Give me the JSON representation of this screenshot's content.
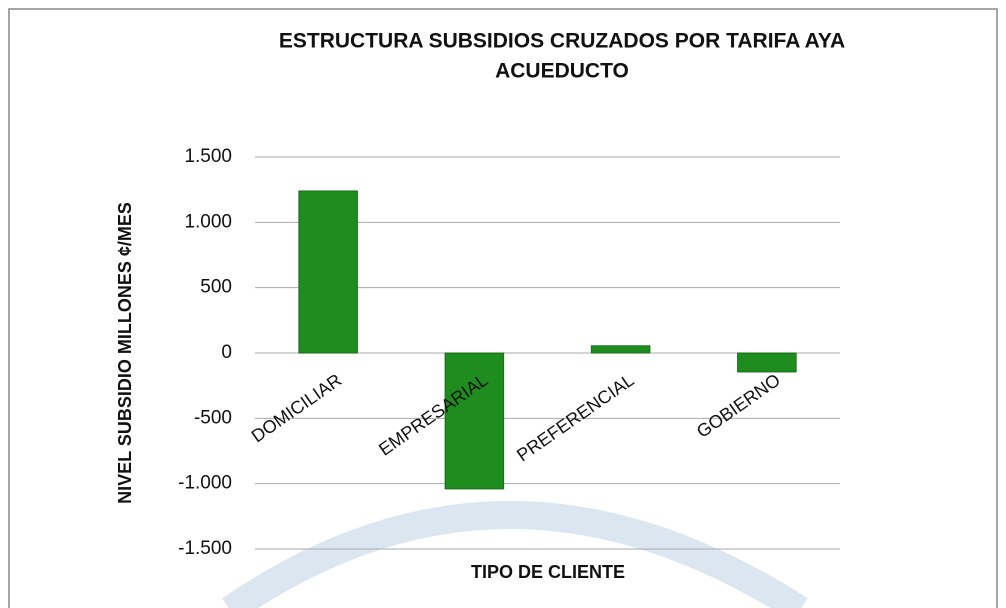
{
  "chart_data": {
    "type": "bar",
    "title": [
      "ESTRUCTURA  SUBSIDIOS CRUZADOS POR TARIFA AYA",
      "ACUEDUCTO"
    ],
    "x_label": "TIPO DE CLIENTE",
    "y_label": "NIVEL SUBSIDIO MILLONES ¢/MES",
    "categories": [
      "DOMICILIAR",
      "EMPRESARIAL",
      "PREFERENCIAL",
      "GOBIERNO"
    ],
    "values": [
      1240,
      -1040,
      55,
      -145
    ],
    "color": "#1e8c1e",
    "ylim": [
      -1500,
      1500
    ],
    "yticks": [
      {
        "value": 1500,
        "label": "1.500"
      },
      {
        "value": 1000,
        "label": "1.000"
      },
      500,
      0,
      -500,
      {
        "value": -1000,
        "label": "-1.000"
      },
      {
        "value": -1500,
        "label": "-1.500"
      }
    ],
    "grid": true
  }
}
